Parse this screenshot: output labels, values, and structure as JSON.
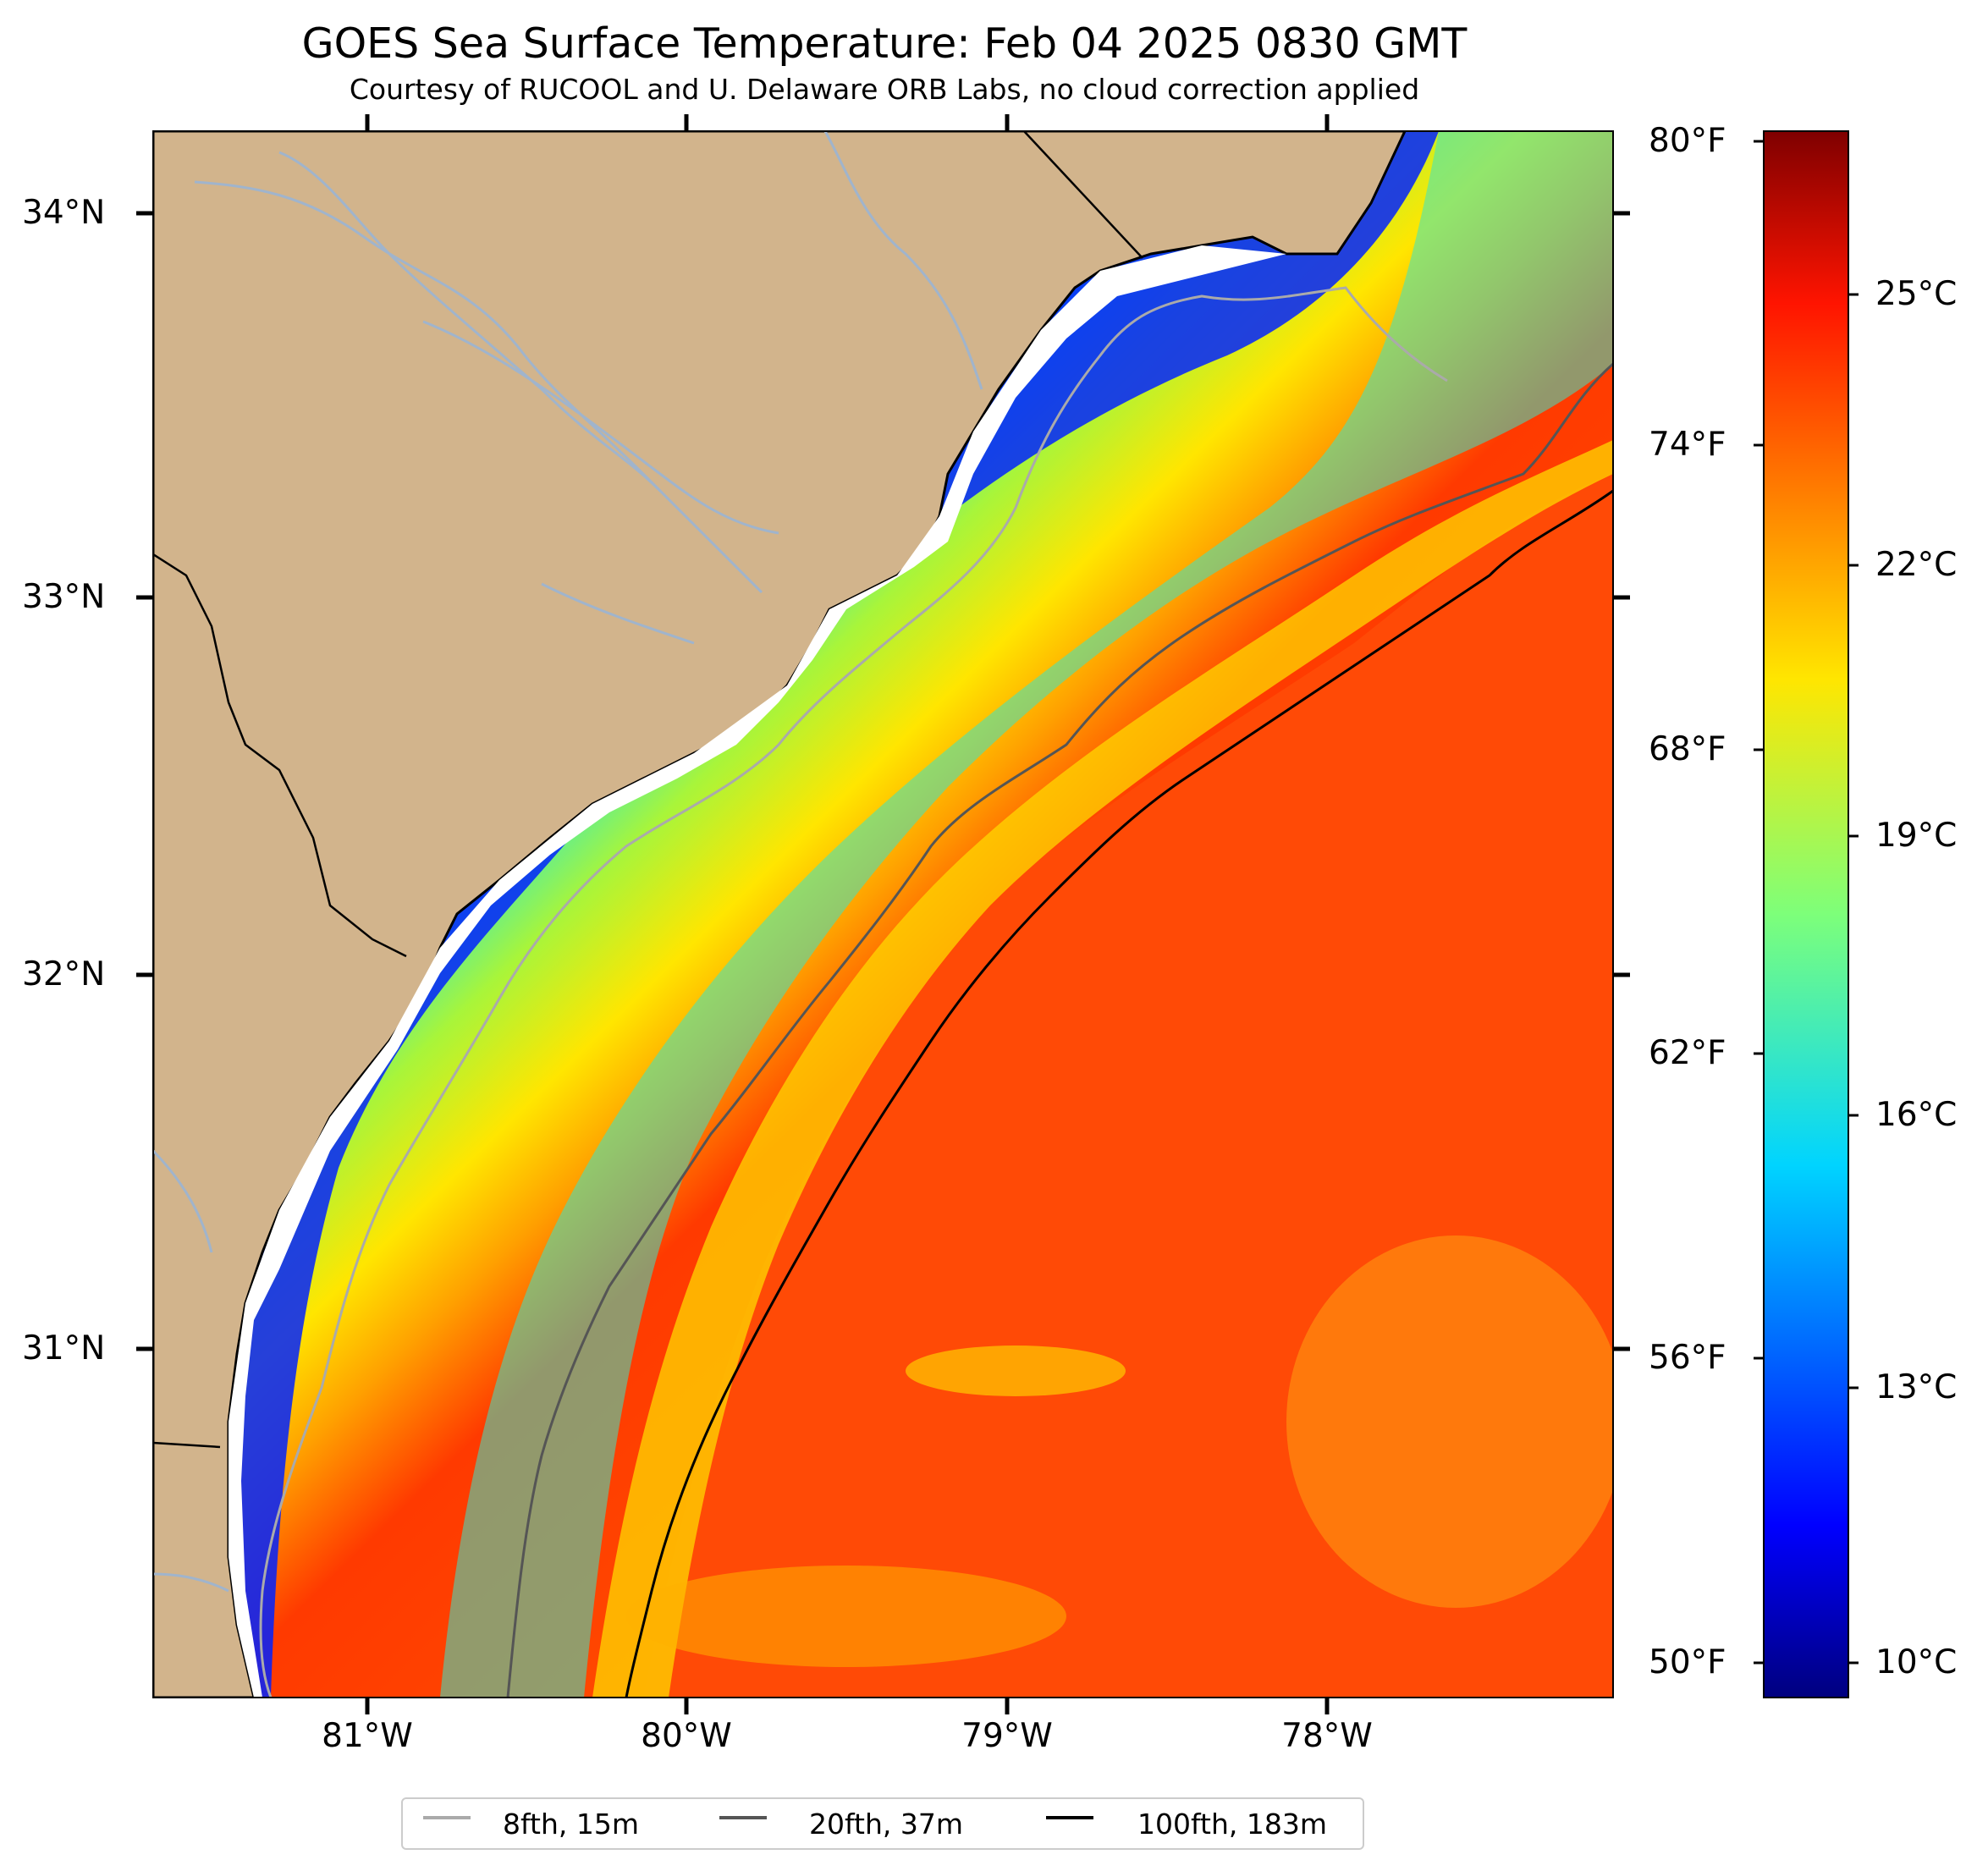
{
  "title": "GOES Sea Surface Temperature: Feb 04 2025 0830 GMT",
  "subtitle": "Courtesy of RUCOOL and U. Delaware ORB Labs, no cloud correction applied",
  "axes": {
    "lat_labels": [
      "34°N",
      "33°N",
      "32°N",
      "31°N"
    ],
    "lon_labels": [
      "81°W",
      "80°W",
      "79°W",
      "78°W"
    ]
  },
  "colorbar": {
    "fahrenheit": [
      "80°F",
      "74°F",
      "68°F",
      "62°F",
      "56°F",
      "50°F"
    ],
    "celsius": [
      "25°C",
      "22°C",
      "19°C",
      "16°C",
      "13°C",
      "10°C"
    ],
    "range_c": [
      9.5,
      27.5
    ],
    "colormap": "jet"
  },
  "legend": [
    {
      "label": "8fth, 15m",
      "color": "#aaaaaa"
    },
    {
      "label": "20fth, 37m",
      "color": "#555555"
    },
    {
      "label": "100fth, 183m",
      "color": "#000000"
    }
  ],
  "colors": {
    "land": "#d2b48c",
    "rivers": "#a0b4cc",
    "coast": "#000000"
  }
}
